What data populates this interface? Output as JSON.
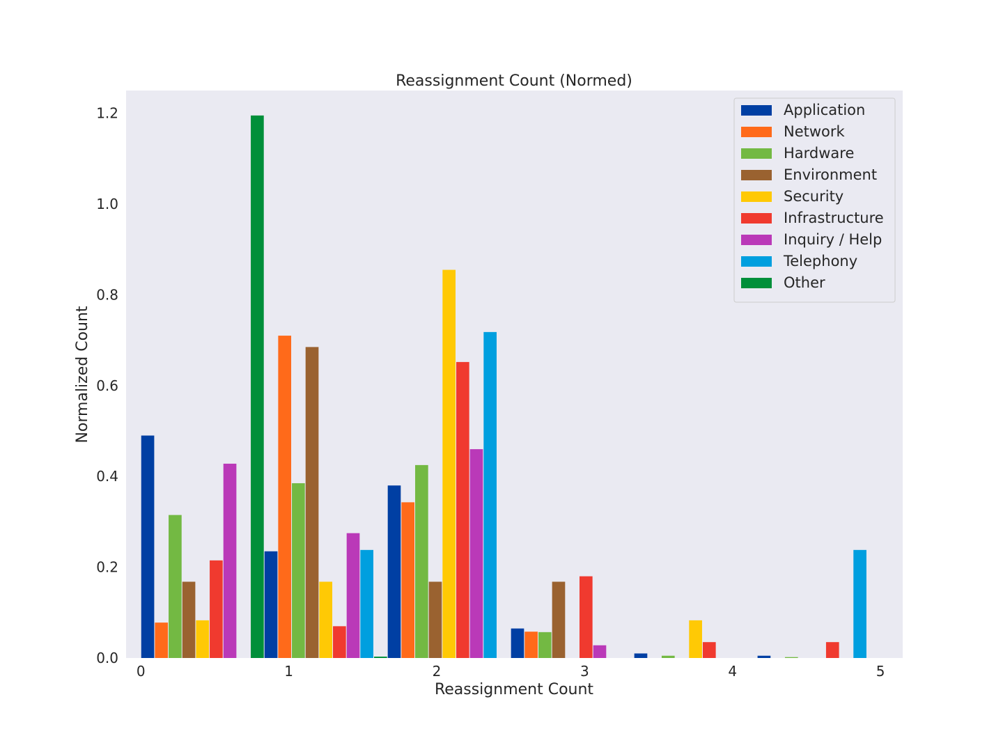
{
  "chart_data": {
    "type": "bar",
    "title": "Reassignment Count (Normed)",
    "xlabel": "Reassignment Count",
    "ylabel": "Normalized Count",
    "xlim": [
      -0.1,
      5.15
    ],
    "ylim": [
      0,
      1.25
    ],
    "xticks": [
      "0",
      "1",
      "2",
      "3",
      "4",
      "5"
    ],
    "yticks": [
      "0.0",
      "0.2",
      "0.4",
      "0.6",
      "0.8",
      "1.0",
      "1.2"
    ],
    "grid": false,
    "legend_position": "top-right",
    "bin_width": 0.8333,
    "background": "#eaeaf2",
    "series": [
      {
        "name": "Application",
        "color": "#003fa3",
        "values": [
          0.49,
          0.235,
          0.38,
          0.065,
          0.01,
          0.005
        ]
      },
      {
        "name": "Network",
        "color": "#ff6a1a",
        "values": [
          0.078,
          0.71,
          0.343,
          0.058,
          0,
          0
        ]
      },
      {
        "name": "Hardware",
        "color": "#73b943",
        "values": [
          0.315,
          0.385,
          0.425,
          0.057,
          0.005,
          0.002
        ]
      },
      {
        "name": "Environment",
        "color": "#9a6230",
        "values": [
          0.168,
          0.685,
          0.168,
          0.168,
          0,
          0
        ]
      },
      {
        "name": "Security",
        "color": "#ffc905",
        "values": [
          0.083,
          0.168,
          0.855,
          0,
          0.083,
          0
        ]
      },
      {
        "name": "Infrastructure",
        "color": "#f03a2f",
        "values": [
          0.215,
          0.07,
          0.652,
          0.18,
          0.035,
          0.035
        ]
      },
      {
        "name": "Inquiry / Help",
        "color": "#ba39b8",
        "values": [
          0.428,
          0.275,
          0.46,
          0.028,
          0,
          0
        ]
      },
      {
        "name": "Telephony",
        "color": "#009fdf",
        "values": [
          0,
          0.238,
          0.718,
          0,
          0,
          0.238
        ]
      },
      {
        "name": "Other",
        "color": "#008f3a",
        "values": [
          1.195,
          0.003,
          0,
          0,
          0,
          0
        ]
      }
    ]
  }
}
